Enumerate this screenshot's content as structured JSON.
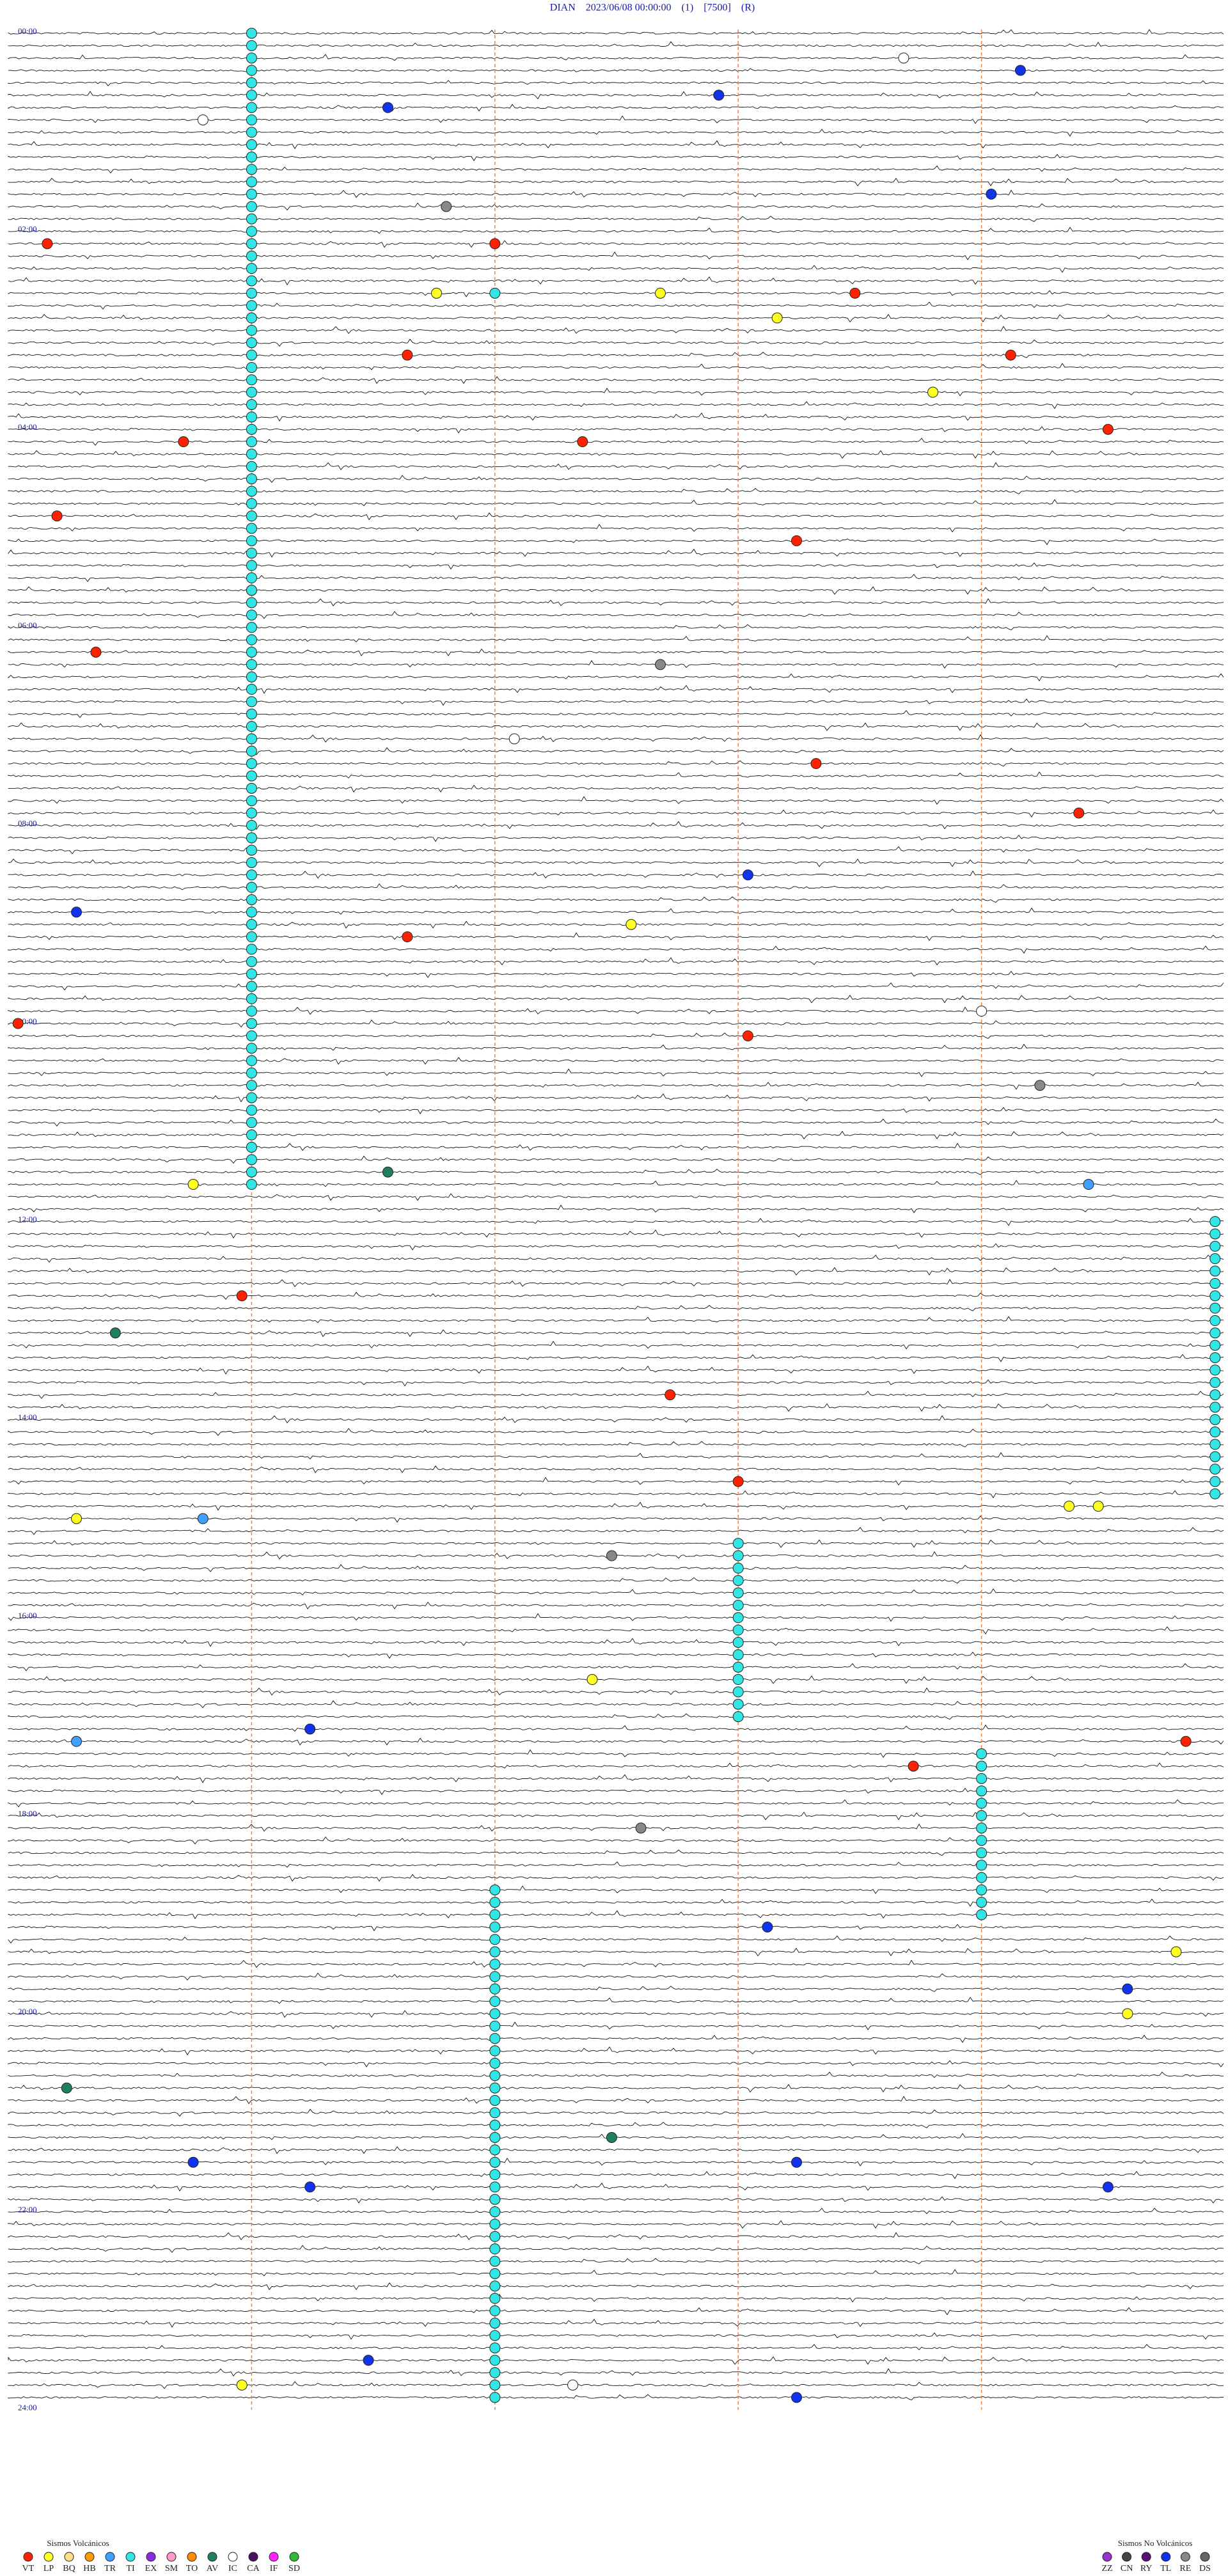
{
  "header": {
    "title": "DIAN    2023/06/08 00:00:00    (1)    [7500]    (R)"
  },
  "hour_labels": [
    "00:00",
    "02:00",
    "04:00",
    "06:00",
    "08:00",
    "10:00",
    "12:00",
    "14:00",
    "16:00",
    "18:00",
    "20:00",
    "22:00",
    "24:00"
  ],
  "legend_groups": [
    {
      "title": "Sismos Volcánicos",
      "types": [
        {
          "name": "VT",
          "color": "#ff2200",
          "times": [
            2.129,
            2.175,
            2.712,
            3.291,
            3.353,
            4.113,
            4.184,
            4.143,
            4.88,
            5.206,
            5.65,
            6.259,
            7.458,
            7.985,
            9.166,
            10.001,
            10.201,
            12.774,
            13.818,
            14.7,
            17.371,
            17.593
          ]
        },
        {
          "name": "LP",
          "color": "#ffff22",
          "times": [
            2.669,
            2.692,
            2.954,
            3.72,
            9.064,
            11.644,
            15.007,
            14.984,
            14.987,
            16.685,
            19.495,
            20.115,
            23.774
          ]
        },
        {
          "name": "BQ",
          "color": "#ffe080",
          "times": []
        },
        {
          "name": "HB",
          "color": "#ff9900",
          "times": []
        },
        {
          "name": "TR",
          "color": "#40a0ff",
          "times": [
            11.736,
            15.02,
            17.257
          ]
        },
        {
          "name": "TI",
          "color": "#33e6e6",
          "times": [
            0.025,
            0.15,
            0.275,
            0.4,
            0.525,
            0.65,
            0.775,
            0.9,
            1.025,
            1.15,
            1.275,
            1.4,
            1.525,
            1.65,
            1.775,
            1.9,
            2.025,
            2.15,
            2.275,
            2.4,
            2.525,
            2.65,
            2.775,
            2.9,
            3.025,
            3.15,
            3.275,
            3.4,
            3.525,
            3.65,
            3.775,
            3.9,
            4.025,
            4.15,
            4.275,
            4.4,
            4.525,
            4.65,
            4.775,
            4.9,
            5.025,
            5.15,
            5.275,
            5.4,
            5.525,
            5.65,
            5.775,
            5.9,
            6.025,
            6.15,
            6.275,
            6.4,
            6.525,
            6.65,
            6.775,
            6.9,
            7.025,
            7.15,
            7.275,
            7.4,
            7.525,
            7.65,
            7.775,
            7.9,
            8.025,
            8.15,
            8.275,
            8.4,
            8.525,
            8.65,
            8.775,
            8.9,
            9.025,
            9.15,
            9.275,
            9.4,
            9.525,
            9.65,
            9.775,
            9.9,
            10.025,
            10.15,
            10.275,
            10.4,
            10.525,
            10.65,
            10.775,
            10.9,
            11.025,
            11.15,
            11.275,
            11.4,
            11.525,
            11.65,
            12.124,
            12.249,
            12.374,
            12.499,
            12.624,
            12.749,
            12.874,
            12.999,
            13.124,
            13.249,
            13.374,
            13.499,
            13.624,
            13.749,
            13.874,
            13.999,
            14.124,
            14.249,
            14.374,
            14.499,
            14.624,
            14.749,
            14.874,
            15.325,
            15.45,
            15.575,
            15.7,
            15.825,
            15.95,
            16.075,
            16.2,
            16.325,
            16.45,
            16.575,
            16.7,
            16.825,
            16.95,
            17.075,
            17.475,
            17.6,
            17.725,
            17.85,
            17.975,
            18.1,
            18.225,
            18.35,
            18.475,
            18.6,
            18.725,
            18.85,
            18.975,
            19.1,
            18.8,
            18.925,
            19.05,
            19.175,
            19.3,
            19.425,
            19.55,
            19.675,
            19.8,
            19.925,
            20.05,
            20.175,
            20.3,
            20.425,
            20.55,
            20.675,
            20.8,
            20.925,
            21.05,
            21.175,
            21.3,
            21.425,
            21.55,
            21.675,
            21.8,
            21.925,
            22.05,
            22.175,
            22.3,
            22.425,
            22.55,
            22.675,
            22.8,
            22.925,
            23.05,
            23.175,
            23.3,
            23.425,
            23.55,
            23.675,
            23.8,
            23.925,
            2.675
          ]
        },
        {
          "name": "EX",
          "color": "#8a2be2",
          "times": []
        },
        {
          "name": "SM",
          "color": "#ff99cc",
          "times": []
        },
        {
          "name": "TO",
          "color": "#ff8c00",
          "times": []
        },
        {
          "name": "AV",
          "color": "#1f8060",
          "times": [
            11.539,
            13.136,
            20.756,
            21.312
          ]
        },
        {
          "name": "IC",
          "color": "#ffffff",
          "times": [
            0.342,
            0.895,
            7.177,
            9.975,
            23.808
          ]
        },
        {
          "name": "CA",
          "color": "#4b1060",
          "times": []
        },
        {
          "name": "IF",
          "color": "#ff22ff",
          "times": []
        },
        {
          "name": "SD",
          "color": "#33bb33",
          "times": []
        }
      ]
    },
    {
      "title": "Sismos No Volcánicos",
      "types": [
        {
          "name": "ZZ",
          "color": "#9933cc",
          "times": []
        },
        {
          "name": "CN",
          "color": "#444444",
          "times": []
        },
        {
          "name": "RY",
          "color": "#551177",
          "times": []
        },
        {
          "name": "TL",
          "color": "#1133ee",
          "times": [
            0.479,
            0.789,
            0.698,
            1.726,
            8.576,
            8.882,
            17.156,
            19.203,
            19.865,
            21.581,
            21.519,
            21.781,
            21.863,
            23.537,
            23.956
          ]
        },
        {
          "name": "RE",
          "color": "#888888",
          "times": [
            1.795,
            6.442,
            10.731,
            15.437,
            18.19
          ]
        },
        {
          "name": "DS",
          "color": "#666666",
          "times": []
        }
      ]
    }
  ]
}
